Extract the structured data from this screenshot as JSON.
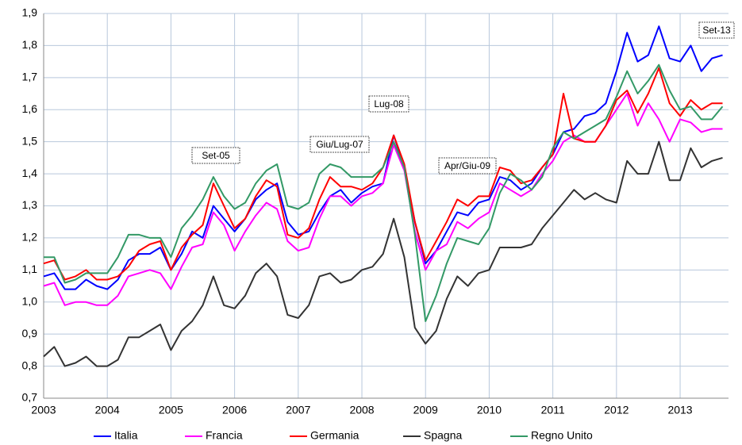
{
  "chart_data": {
    "type": "line",
    "x": [
      2003,
      2003.167,
      2003.333,
      2003.5,
      2003.667,
      2003.833,
      2004,
      2004.167,
      2004.333,
      2004.5,
      2004.667,
      2004.833,
      2005,
      2005.167,
      2005.333,
      2005.5,
      2005.667,
      2005.833,
      2006,
      2006.167,
      2006.333,
      2006.5,
      2006.667,
      2006.833,
      2007,
      2007.167,
      2007.333,
      2007.5,
      2007.667,
      2007.833,
      2008,
      2008.167,
      2008.333,
      2008.5,
      2008.667,
      2008.833,
      2009,
      2009.167,
      2009.333,
      2009.5,
      2009.667,
      2009.833,
      2010,
      2010.167,
      2010.333,
      2010.5,
      2010.667,
      2010.833,
      2011,
      2011.167,
      2011.333,
      2011.5,
      2011.667,
      2011.833,
      2012,
      2012.167,
      2012.333,
      2012.5,
      2012.667,
      2012.833,
      2013,
      2013.167,
      2013.333,
      2013.5,
      2013.667
    ],
    "series": [
      {
        "name": "Italia",
        "color": "#0000ff",
        "values": [
          1.08,
          1.09,
          1.04,
          1.04,
          1.07,
          1.05,
          1.04,
          1.07,
          1.13,
          1.15,
          1.15,
          1.17,
          1.1,
          1.15,
          1.22,
          1.2,
          1.3,
          1.26,
          1.22,
          1.26,
          1.32,
          1.35,
          1.37,
          1.25,
          1.21,
          1.22,
          1.28,
          1.33,
          1.35,
          1.31,
          1.34,
          1.36,
          1.37,
          1.52,
          1.42,
          1.25,
          1.12,
          1.16,
          1.22,
          1.28,
          1.27,
          1.31,
          1.32,
          1.39,
          1.38,
          1.35,
          1.37,
          1.42,
          1.46,
          1.53,
          1.54,
          1.58,
          1.59,
          1.62,
          1.72,
          1.84,
          1.75,
          1.77,
          1.86,
          1.76,
          1.75,
          1.8,
          1.72,
          1.76,
          1.77
        ]
      },
      {
        "name": "Francia",
        "color": "#ff00ff",
        "values": [
          1.05,
          1.06,
          0.99,
          1.0,
          1.0,
          0.99,
          0.99,
          1.02,
          1.08,
          1.09,
          1.1,
          1.09,
          1.04,
          1.11,
          1.17,
          1.18,
          1.28,
          1.24,
          1.16,
          1.22,
          1.27,
          1.31,
          1.29,
          1.19,
          1.16,
          1.17,
          1.26,
          1.33,
          1.33,
          1.3,
          1.33,
          1.34,
          1.37,
          1.49,
          1.41,
          1.22,
          1.1,
          1.16,
          1.18,
          1.25,
          1.23,
          1.26,
          1.28,
          1.37,
          1.35,
          1.33,
          1.35,
          1.4,
          1.44,
          1.5,
          1.52,
          1.5,
          1.5,
          1.55,
          1.6,
          1.65,
          1.55,
          1.62,
          1.57,
          1.5,
          1.57,
          1.56,
          1.53,
          1.54,
          1.54
        ]
      },
      {
        "name": "Germania",
        "color": "#ff0000",
        "values": [
          1.12,
          1.13,
          1.07,
          1.08,
          1.1,
          1.07,
          1.07,
          1.08,
          1.11,
          1.16,
          1.18,
          1.19,
          1.1,
          1.17,
          1.21,
          1.24,
          1.37,
          1.3,
          1.23,
          1.26,
          1.33,
          1.38,
          1.36,
          1.21,
          1.2,
          1.23,
          1.32,
          1.39,
          1.36,
          1.36,
          1.35,
          1.37,
          1.42,
          1.52,
          1.43,
          1.25,
          1.13,
          1.19,
          1.25,
          1.32,
          1.3,
          1.33,
          1.33,
          1.42,
          1.41,
          1.37,
          1.38,
          1.42,
          1.46,
          1.65,
          1.51,
          1.5,
          1.5,
          1.55,
          1.63,
          1.66,
          1.59,
          1.65,
          1.73,
          1.62,
          1.58,
          1.63,
          1.6,
          1.62,
          1.62
        ]
      },
      {
        "name": "Spagna",
        "color": "#333333",
        "values": [
          0.83,
          0.86,
          0.8,
          0.81,
          0.83,
          0.8,
          0.8,
          0.82,
          0.89,
          0.89,
          0.91,
          0.93,
          0.85,
          0.91,
          0.94,
          0.99,
          1.08,
          0.99,
          0.98,
          1.02,
          1.09,
          1.12,
          1.08,
          0.96,
          0.95,
          0.99,
          1.08,
          1.09,
          1.06,
          1.07,
          1.1,
          1.11,
          1.15,
          1.26,
          1.14,
          0.92,
          0.87,
          0.91,
          1.01,
          1.08,
          1.05,
          1.09,
          1.1,
          1.17,
          1.17,
          1.17,
          1.18,
          1.23,
          1.27,
          1.31,
          1.35,
          1.32,
          1.34,
          1.32,
          1.31,
          1.44,
          1.4,
          1.4,
          1.5,
          1.38,
          1.38,
          1.48,
          1.42,
          1.44,
          1.45
        ]
      },
      {
        "name": "Regno Unito",
        "color": "#339966",
        "values": [
          1.14,
          1.14,
          1.06,
          1.07,
          1.09,
          1.09,
          1.09,
          1.14,
          1.21,
          1.21,
          1.2,
          1.2,
          1.14,
          1.23,
          1.27,
          1.32,
          1.39,
          1.33,
          1.29,
          1.31,
          1.37,
          1.41,
          1.43,
          1.3,
          1.29,
          1.31,
          1.4,
          1.43,
          1.42,
          1.39,
          1.39,
          1.39,
          1.42,
          1.5,
          1.42,
          1.21,
          0.94,
          1.02,
          1.12,
          1.2,
          1.19,
          1.18,
          1.23,
          1.34,
          1.4,
          1.38,
          1.35,
          1.39,
          1.48,
          1.53,
          1.51,
          1.53,
          1.55,
          1.57,
          1.64,
          1.72,
          1.65,
          1.69,
          1.74,
          1.66,
          1.6,
          1.61,
          1.57,
          1.57,
          1.61
        ]
      }
    ],
    "xlim": [
      2003,
      2013.76
    ],
    "xticks": [
      2003,
      2004,
      2005,
      2006,
      2007,
      2008,
      2009,
      2010,
      2011,
      2012,
      2013
    ],
    "ylim": [
      0.7,
      1.9
    ],
    "yticks": [
      {
        "value": 0.7,
        "label": "0,7"
      },
      {
        "value": 0.8,
        "label": "0,8"
      },
      {
        "value": 0.9,
        "label": "0,9"
      },
      {
        "value": 1.0,
        "label": "1,0"
      },
      {
        "value": 1.1,
        "label": "1,1"
      },
      {
        "value": 1.2,
        "label": "1,2"
      },
      {
        "value": 1.3,
        "label": "1,3"
      },
      {
        "value": 1.4,
        "label": "1,4"
      },
      {
        "value": 1.5,
        "label": "1,5"
      },
      {
        "value": 1.6,
        "label": "1,6"
      },
      {
        "value": 1.7,
        "label": "1,7"
      },
      {
        "value": 1.8,
        "label": "1,8"
      },
      {
        "value": 1.9,
        "label": "1,9"
      }
    ],
    "grid": true,
    "legend": "bottom",
    "annotations": [
      "Set-05",
      "Giu/Lug-07",
      "Lug-08",
      "Apr/Giu-09",
      "Set-13"
    ]
  }
}
